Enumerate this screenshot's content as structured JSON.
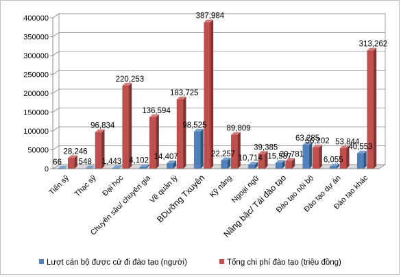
{
  "chart_data": {
    "type": "bar",
    "style": "3d-clustered-column",
    "categories": [
      "Tiến sỹ",
      "Thạc sỹ",
      "Đại học",
      "Chuyên sâu/ chuyên gia",
      "Về quản lý",
      "BDưỡng Txuyên",
      "Kỹ năng",
      "Ngoại ngữ",
      "Nâng bậc/ Tái đào tạo",
      "Đào tạo nội bộ",
      "Đào tạo dự án",
      "Đào tạo khác"
    ],
    "series": [
      {
        "name": "Lượt cán bộ được cử đi đào tạo (người)",
        "color": "#4f81bd",
        "values": [
          66,
          548,
          1443,
          4102,
          14407,
          98525,
          22257,
          10714,
          15587,
          63285,
          6055,
          40553
        ],
        "labels": [
          "66",
          "548",
          "1,443",
          "4,102",
          "14,407",
          "98,525",
          "22,257",
          "10,714",
          "15,587",
          "63,285",
          "6,055",
          "40,553"
        ]
      },
      {
        "name": "Tổng chi phí đào tạo (triệu đồng)",
        "color": "#c0504d",
        "values": [
          28246,
          96834,
          220253,
          136594,
          183725,
          387984,
          89809,
          39385,
          20781,
          56202,
          53844,
          313262
        ],
        "labels": [
          "28,246",
          "96,834",
          "220,253",
          "136,594",
          "183,725",
          "387,984",
          "89,809",
          "39,385",
          "20,781",
          "56,202",
          "53,844",
          "313,262"
        ]
      }
    ],
    "yticks": [
      "0",
      "50000",
      "100000",
      "150000",
      "200000",
      "250000",
      "300000",
      "350000",
      "400000"
    ],
    "ylim": [
      0,
      400000
    ],
    "grid": true,
    "legend_position": "bottom"
  }
}
